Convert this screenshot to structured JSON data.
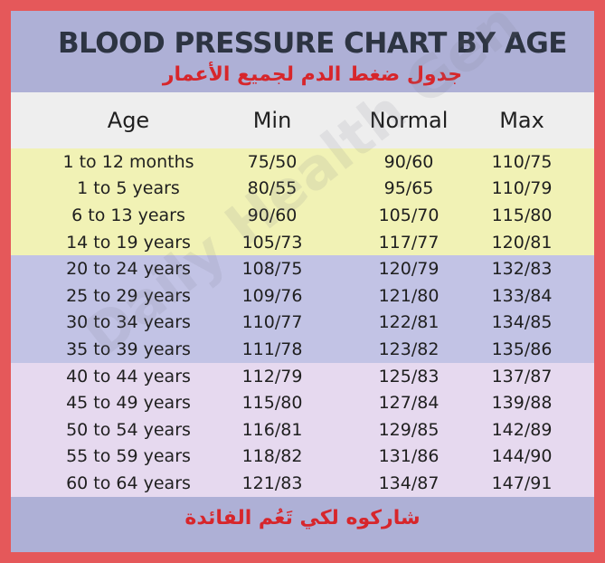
{
  "title": "BLOOD PRESSURE CHART BY AGE",
  "subtitle_ar": "جدول ضغط الدم لجميع الأعمار",
  "watermark": "Daily Health Gen",
  "footer_ar": "شاركوه لكي تَعُم الفائدة",
  "colors": {
    "frame": "#e5585a",
    "panel": "#aeb0d6",
    "header": "#eeeeee",
    "yellow": "#f1f2b5",
    "violet": "#c2c3e5",
    "lavender": "#e6d9ef",
    "title": "#2d3442",
    "arabic": "#d7262b"
  },
  "table": {
    "headers": {
      "age": "Age",
      "min": "Min",
      "normal": "Normal",
      "max": "Max"
    },
    "rows": [
      {
        "age": "1 to 12 months",
        "min": "75/50",
        "normal": "90/60",
        "max": "110/75",
        "band": "yellow"
      },
      {
        "age": "1 to 5 years",
        "min": "80/55",
        "normal": "95/65",
        "max": "110/79",
        "band": "yellow"
      },
      {
        "age": "6 to 13 years",
        "min": "90/60",
        "normal": "105/70",
        "max": "115/80",
        "band": "yellow"
      },
      {
        "age": "14 to 19 years",
        "min": "105/73",
        "normal": "117/77",
        "max": "120/81",
        "band": "yellow"
      },
      {
        "age": "20 to 24 years",
        "min": "108/75",
        "normal": "120/79",
        "max": "132/83",
        "band": "violet"
      },
      {
        "age": "25 to 29 years",
        "min": "109/76",
        "normal": "121/80",
        "max": "133/84",
        "band": "violet"
      },
      {
        "age": "30 to 34 years",
        "min": "110/77",
        "normal": "122/81",
        "max": "134/85",
        "band": "violet"
      },
      {
        "age": "35 to 39 years",
        "min": "111/78",
        "normal": "123/82",
        "max": "135/86",
        "band": "violet"
      },
      {
        "age": "40 to 44 years",
        "min": "112/79",
        "normal": "125/83",
        "max": "137/87",
        "band": "lavender"
      },
      {
        "age": "45 to 49 years",
        "min": "115/80",
        "normal": "127/84",
        "max": "139/88",
        "band": "lavender"
      },
      {
        "age": "50 to 54 years",
        "min": "116/81",
        "normal": "129/85",
        "max": "142/89",
        "band": "lavender"
      },
      {
        "age": "55 to 59 years",
        "min": "118/82",
        "normal": "131/86",
        "max": "144/90",
        "band": "lavender"
      },
      {
        "age": "60 to 64 years",
        "min": "121/83",
        "normal": "134/87",
        "max": "147/91",
        "band": "lavender"
      }
    ]
  }
}
